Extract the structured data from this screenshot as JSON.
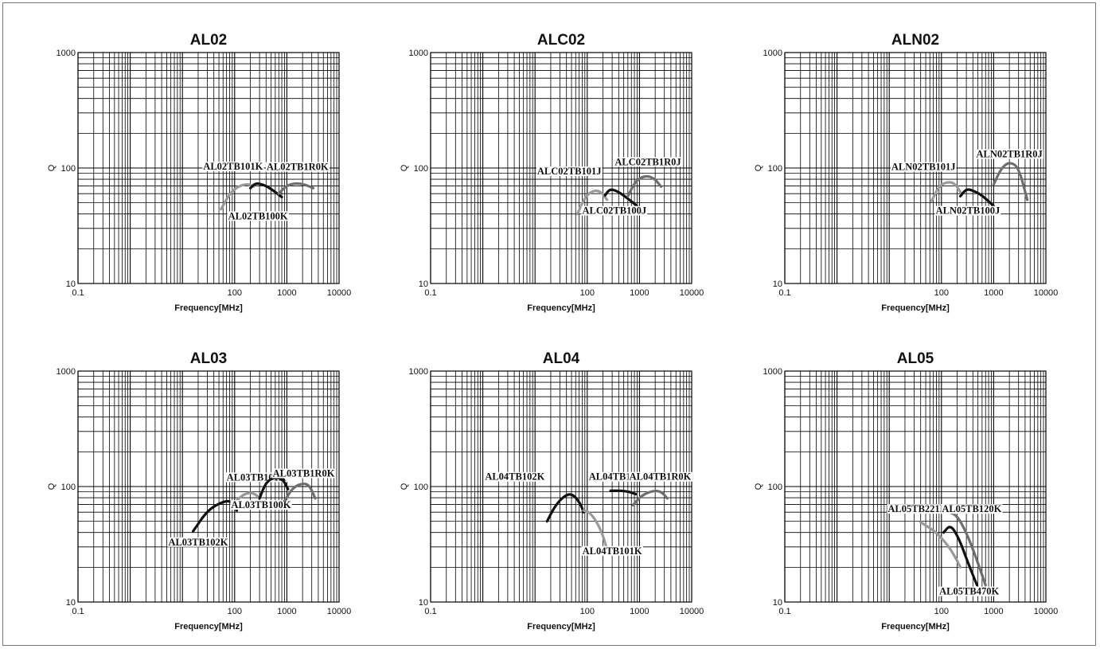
{
  "chart_data": [
    {
      "type": "line",
      "title": "AL02",
      "xlabel": "Frequency[MHz]",
      "ylabel": "Q",
      "xscale": "log",
      "yscale": "log",
      "xlim": [
        0.1,
        10000
      ],
      "ylim": [
        10,
        1000
      ],
      "xticks": [
        "0.1",
        "100",
        "1000",
        "10000"
      ],
      "yticks": [
        "10",
        "100",
        "1000"
      ],
      "grid": true,
      "series": [
        {
          "name": "AL02TB101K",
          "color": "#9a9a9a",
          "x": [
            55,
            80,
            120,
            180,
            230
          ],
          "y": [
            44,
            60,
            70,
            73,
            69
          ],
          "label_x": 25,
          "label_y": 97,
          "label_align": "start"
        },
        {
          "name": "AL02TB100K",
          "color": "#111111",
          "x": [
            200,
            250,
            350,
            500,
            800
          ],
          "y": [
            67,
            74,
            72,
            66,
            56
          ],
          "label_x": 280,
          "label_y": 36,
          "label_align": "middle"
        },
        {
          "name": "AL02TB1R0K",
          "color": "#6e6e6e",
          "x": [
            700,
            1000,
            1500,
            2200,
            3200
          ],
          "y": [
            60,
            71,
            74,
            72,
            67
          ],
          "label_x": 1600,
          "label_y": 96,
          "label_align": "middle"
        }
      ]
    },
    {
      "type": "line",
      "title": "ALC02",
      "xlabel": "Frequency[MHz]",
      "ylabel": "Q",
      "xscale": "log",
      "yscale": "log",
      "xlim": [
        0.1,
        10000
      ],
      "ylim": [
        10,
        1000
      ],
      "xticks": [
        "0.1",
        "100",
        "1000",
        "10000"
      ],
      "yticks": [
        "10",
        "100",
        "1000"
      ],
      "grid": true,
      "series": [
        {
          "name": "ALC02TB101J",
          "color": "#9a9a9a",
          "x": [
            65,
            90,
            130,
            180,
            240
          ],
          "y": [
            40,
            56,
            64,
            63,
            53
          ],
          "label_x": 11,
          "label_y": 88,
          "label_align": "start"
        },
        {
          "name": "ALC02TB100J",
          "color": "#111111",
          "x": [
            220,
            270,
            380,
            550,
            900
          ],
          "y": [
            58,
            66,
            63,
            56,
            47
          ],
          "label_x": 330,
          "label_y": 40,
          "label_align": "middle"
        },
        {
          "name": "ALC02TB1R0J",
          "color": "#6e6e6e",
          "x": [
            600,
            850,
            1300,
            1900,
            2600
          ],
          "y": [
            57,
            78,
            86,
            82,
            69
          ],
          "label_x": 1450,
          "label_y": 106,
          "label_align": "middle"
        }
      ]
    },
    {
      "type": "line",
      "title": "ALN02",
      "xlabel": "Frequency[MHz]",
      "ylabel": "Q",
      "xscale": "log",
      "yscale": "log",
      "xlim": [
        0.1,
        10000
      ],
      "ylim": [
        10,
        1000
      ],
      "xticks": [
        "0.1",
        "100",
        "1000",
        "10000"
      ],
      "yticks": [
        "10",
        "100",
        "1000"
      ],
      "grid": true,
      "series": [
        {
          "name": "ALN02TB101J",
          "color": "#9a9a9a",
          "x": [
            65,
            90,
            130,
            180,
            240
          ],
          "y": [
            52,
            70,
            76,
            74,
            60
          ],
          "label_x": 11,
          "label_y": 96,
          "label_align": "start"
        },
        {
          "name": "ALN02TB100J",
          "color": "#111111",
          "x": [
            230,
            300,
            400,
            600,
            1000
          ],
          "y": [
            57,
            66,
            64,
            58,
            47
          ],
          "label_x": 320,
          "label_y": 40,
          "label_align": "middle"
        },
        {
          "name": "ALN02TB1R0J",
          "color": "#6e6e6e",
          "x": [
            1000,
            1400,
            2000,
            3000,
            4400
          ],
          "y": [
            72,
            100,
            113,
            102,
            53
          ],
          "label_x": 2000,
          "label_y": 124,
          "label_align": "middle"
        }
      ]
    },
    {
      "type": "line",
      "title": "AL03",
      "xlabel": "Frequency[MHz]",
      "ylabel": "Q",
      "xscale": "log",
      "yscale": "log",
      "xlim": [
        0.1,
        10000
      ],
      "ylim": [
        10,
        1000
      ],
      "xticks": [
        "0.1",
        "100",
        "1000",
        "10000"
      ],
      "yticks": [
        "10",
        "100",
        "1000"
      ],
      "grid": true,
      "series": [
        {
          "name": "AL03TB102K",
          "color": "#111111",
          "x": [
            16,
            30,
            55,
            85,
            110
          ],
          "y": [
            41,
            62,
            73,
            76,
            62
          ],
          "label_x": 20,
          "label_y": 31,
          "label_align": "middle"
        },
        {
          "name": "AL03TB101K",
          "color": "#9a9a9a",
          "x": [
            110,
            150,
            220,
            300
          ],
          "y": [
            76,
            86,
            89,
            80
          ],
          "label_x": 70,
          "label_y": 113,
          "label_align": "start"
        },
        {
          "name": "AL03TB100K",
          "color": "#111111",
          "x": [
            300,
            400,
            600,
            850,
            1050
          ],
          "y": [
            79,
            110,
            121,
            115,
            95
          ],
          "label_x": 320,
          "label_y": 65,
          "label_align": "middle"
        },
        {
          "name": "AL03TB1R0K",
          "color": "#6e6e6e",
          "x": [
            900,
            1300,
            2000,
            2700,
            3500
          ],
          "y": [
            75,
            98,
            107,
            103,
            79
          ],
          "label_x": 2100,
          "label_y": 122,
          "label_align": "middle"
        }
      ]
    },
    {
      "type": "line",
      "title": "AL04",
      "xlabel": "Frequency[MHz]",
      "ylabel": "Q",
      "xscale": "log",
      "yscale": "log",
      "xlim": [
        0.1,
        10000
      ],
      "ylim": [
        10,
        1000
      ],
      "xticks": [
        "0.1",
        "100",
        "1000",
        "10000"
      ],
      "yticks": [
        "10",
        "100",
        "1000"
      ],
      "grid": true,
      "series": [
        {
          "name": "AL04TB102K",
          "color": "#111111",
          "x": [
            17,
            25,
            40,
            55,
            75,
            85
          ],
          "y": [
            50,
            70,
            86,
            85,
            70,
            60
          ],
          "label_x": 1.1,
          "label_y": 114,
          "label_align": "start"
        },
        {
          "name": "AL04TB101K",
          "color": "#9a9a9a",
          "x": [
            85,
            110,
            150,
            200,
            240
          ],
          "y": [
            62,
            60,
            50,
            38,
            28
          ],
          "label_x": 300,
          "label_y": 26,
          "label_align": "middle"
        },
        {
          "name": "AL04TB100K",
          "color": "#111111",
          "x": [
            280,
            450,
            650,
            850
          ],
          "y": [
            92,
            92,
            90,
            86
          ],
          "label_x": 400,
          "label_y": 114,
          "label_align": "middle"
        },
        {
          "name": "AL04TB1R0K",
          "color": "#6e6e6e",
          "x": [
            750,
            1100,
            1800,
            2600,
            3400
          ],
          "y": [
            69,
            84,
            92,
            91,
            79
          ],
          "label_x": 2500,
          "label_y": 114,
          "label_align": "middle"
        }
      ]
    },
    {
      "type": "line",
      "title": "AL05",
      "xlabel": "Frequency[MHz]",
      "ylabel": "Q",
      "xscale": "log",
      "yscale": "log",
      "xlim": [
        0.1,
        10000
      ],
      "ylim": [
        10,
        1000
      ],
      "xticks": [
        "0.1",
        "100",
        "1000",
        "10000"
      ],
      "yticks": [
        "10",
        "100",
        "1000"
      ],
      "grid": true,
      "series": [
        {
          "name": "AL05TB221K",
          "color": "#9a9a9a",
          "x": [
            40,
            70,
            120,
            180,
            230
          ],
          "y": [
            49,
            42,
            33,
            25,
            20
          ],
          "label_x": 35,
          "label_y": 60,
          "label_align": "middle"
        },
        {
          "name": "AL05TB120K",
          "color": "#6e6e6e",
          "x": [
            140,
            200,
            300,
            450,
            700
          ],
          "y": [
            60,
            56,
            40,
            25,
            14
          ],
          "label_x": 380,
          "label_y": 60,
          "label_align": "middle"
        },
        {
          "name": "AL05TB470K",
          "color": "#111111",
          "x": [
            110,
            150,
            220,
            320,
            480
          ],
          "y": [
            40,
            47,
            35,
            22,
            14
          ],
          "label_x": 340,
          "label_y": 11.6,
          "label_align": "middle"
        }
      ]
    }
  ]
}
